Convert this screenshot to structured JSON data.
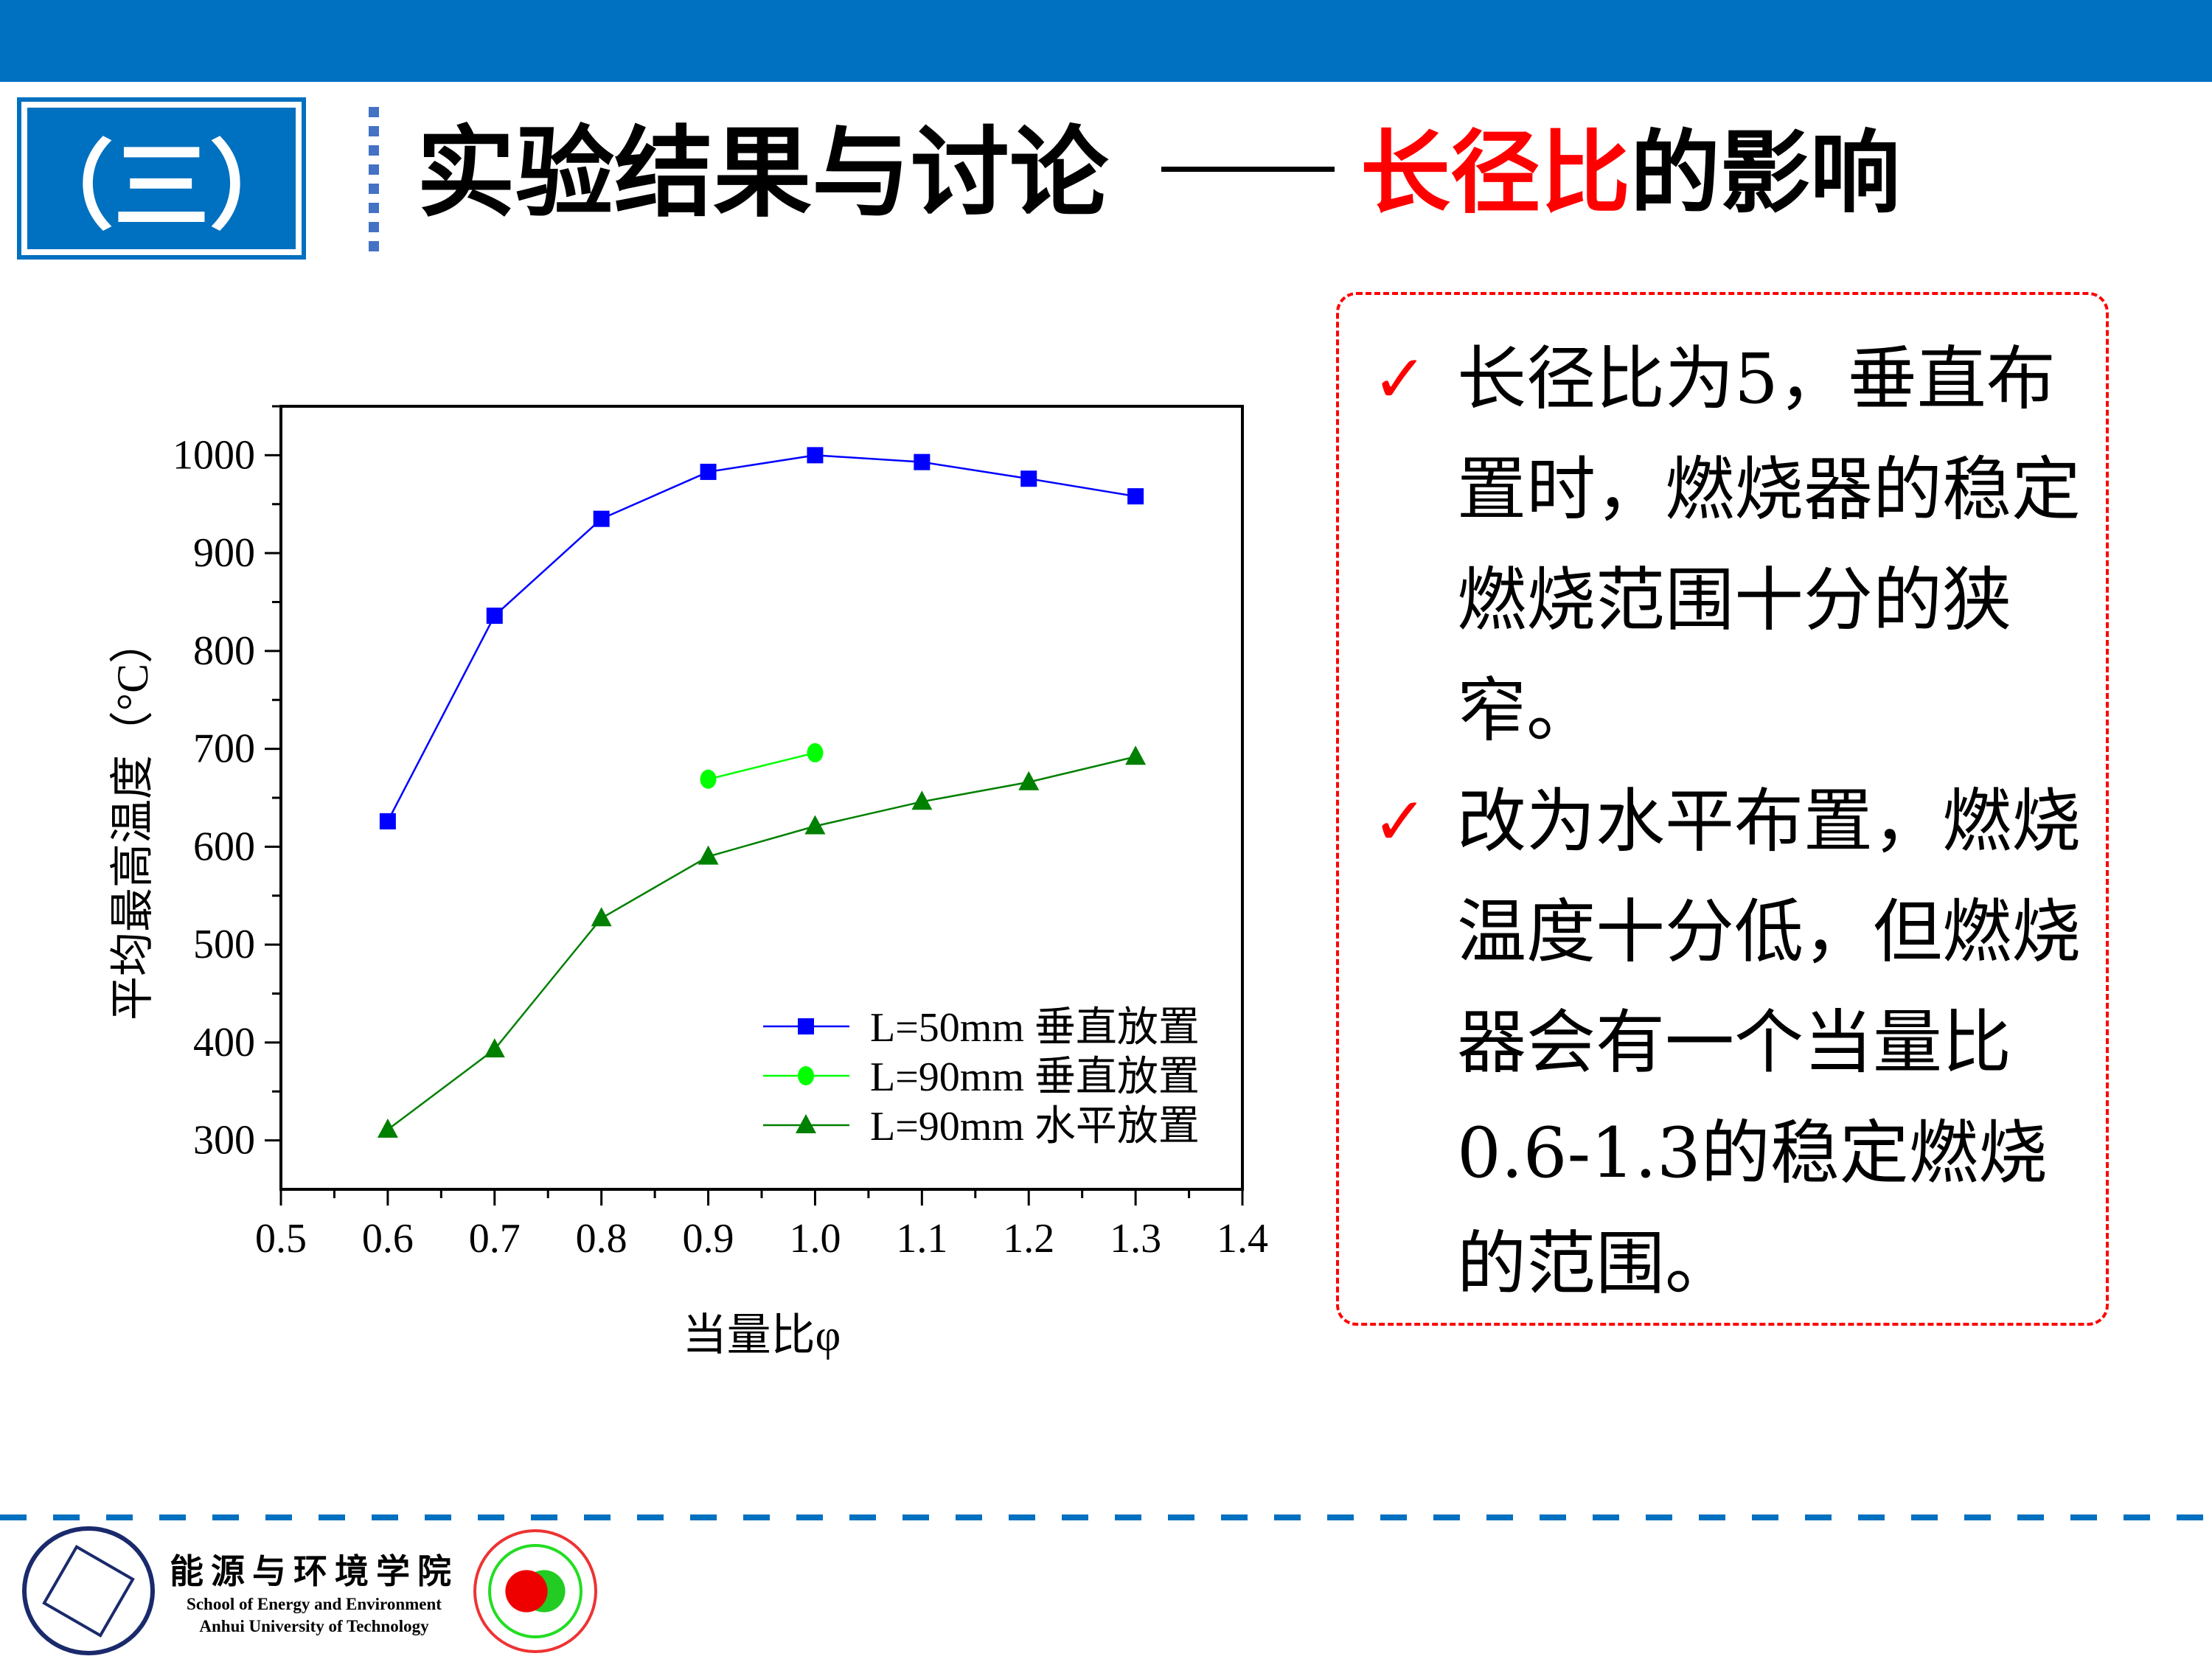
{
  "header": {
    "section": "（三）",
    "title": "实验结果与讨论",
    "subtitle_red": "长径比",
    "subtitle_black": "的影响",
    "accent": "#0070C0"
  },
  "notes": [
    {
      "icon": "check-icon",
      "text": "长径比为5，垂直布置时，燃烧器的稳定燃烧范围十分的狭窄。"
    },
    {
      "icon": "check-icon",
      "text": "改为水平布置，燃烧温度十分低，但燃烧器会有一个当量比0.6-1.3的稳定燃烧的范围。"
    }
  ],
  "footer": {
    "school_cn": "能源与环境学院",
    "school_en1": "School of Energy and Environment",
    "school_en2": "Anhui University of Technology"
  },
  "chart_data": {
    "type": "line",
    "xlabel": "当量比φ",
    "ylabel": "平均最高温度（°C）",
    "xlim": [
      0.5,
      1.4
    ],
    "ylim": [
      250,
      1050
    ],
    "xticks": [
      "0.5",
      "0.6",
      "0.7",
      "0.8",
      "0.9",
      "1.0",
      "1.1",
      "1.2",
      "1.3",
      "1.4"
    ],
    "yticks": [
      "300",
      "400",
      "500",
      "600",
      "700",
      "800",
      "900",
      "1000"
    ],
    "legend": "bottom-right",
    "grid": false,
    "series": [
      {
        "name": "L=50mm  垂直放置",
        "color": "#0000FF",
        "marker": "square",
        "x": [
          0.6,
          0.7,
          0.8,
          0.9,
          1.0,
          1.1,
          1.2,
          1.3
        ],
        "y": [
          626,
          836,
          935,
          983,
          1000,
          993,
          976,
          958
        ]
      },
      {
        "name": "L=90mm  垂直放置",
        "color": "#00FF00",
        "marker": "circle",
        "x": [
          0.9,
          1.0
        ],
        "y": [
          669,
          696
        ]
      },
      {
        "name": "L=90mm  水平放置",
        "color": "#008000",
        "marker": "triangle",
        "x": [
          0.6,
          0.7,
          0.8,
          0.9,
          1.0,
          1.1,
          1.2,
          1.3
        ],
        "y": [
          311,
          393,
          527,
          590,
          621,
          646,
          666,
          692
        ]
      }
    ]
  }
}
